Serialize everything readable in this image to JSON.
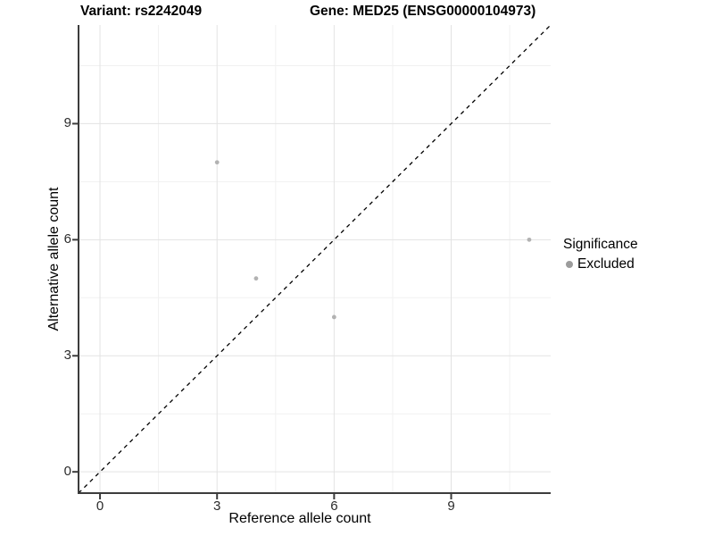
{
  "chart_data": {
    "type": "scatter",
    "titles": {
      "left": "Variant: rs2242049",
      "right": "Gene: MED25 (ENSG00000104973)"
    },
    "xlabel": "Reference allele count",
    "ylabel": "Alternative allele count",
    "xlim": [
      -0.55,
      11.55
    ],
    "ylim": [
      -0.55,
      11.55
    ],
    "x_major_ticks": [
      0,
      3,
      6,
      9
    ],
    "y_major_ticks": [
      0,
      3,
      6,
      9
    ],
    "x_minor_gridlines": [
      1.5,
      4.5,
      7.5,
      10.5
    ],
    "y_minor_gridlines": [
      1.5,
      4.5,
      7.5,
      10.5
    ],
    "grid": "major+minor",
    "identity_line": {
      "equation": "y = x",
      "style": "dashed",
      "color": "#000000"
    },
    "series": [
      {
        "name": "Excluded",
        "color": "#b2b2b2",
        "marker_radius": 2.4,
        "points": [
          {
            "x": 3,
            "y": 8
          },
          {
            "x": 4,
            "y": 5
          },
          {
            "x": 6,
            "y": 4
          },
          {
            "x": 11,
            "y": 6
          }
        ]
      }
    ],
    "legend": {
      "title": "Significance",
      "position": "right",
      "entries": [
        {
          "label": "Excluded",
          "marker": "circle",
          "color": "#9c9c9c"
        }
      ]
    }
  },
  "colors": {
    "background": "#ffffff",
    "axis_line": "#3c3c3c",
    "grid_major": "#e3e3e3",
    "grid_minor": "#f1f1f1",
    "tick_label": "#2b2b2b",
    "identity_line": "#000000"
  }
}
